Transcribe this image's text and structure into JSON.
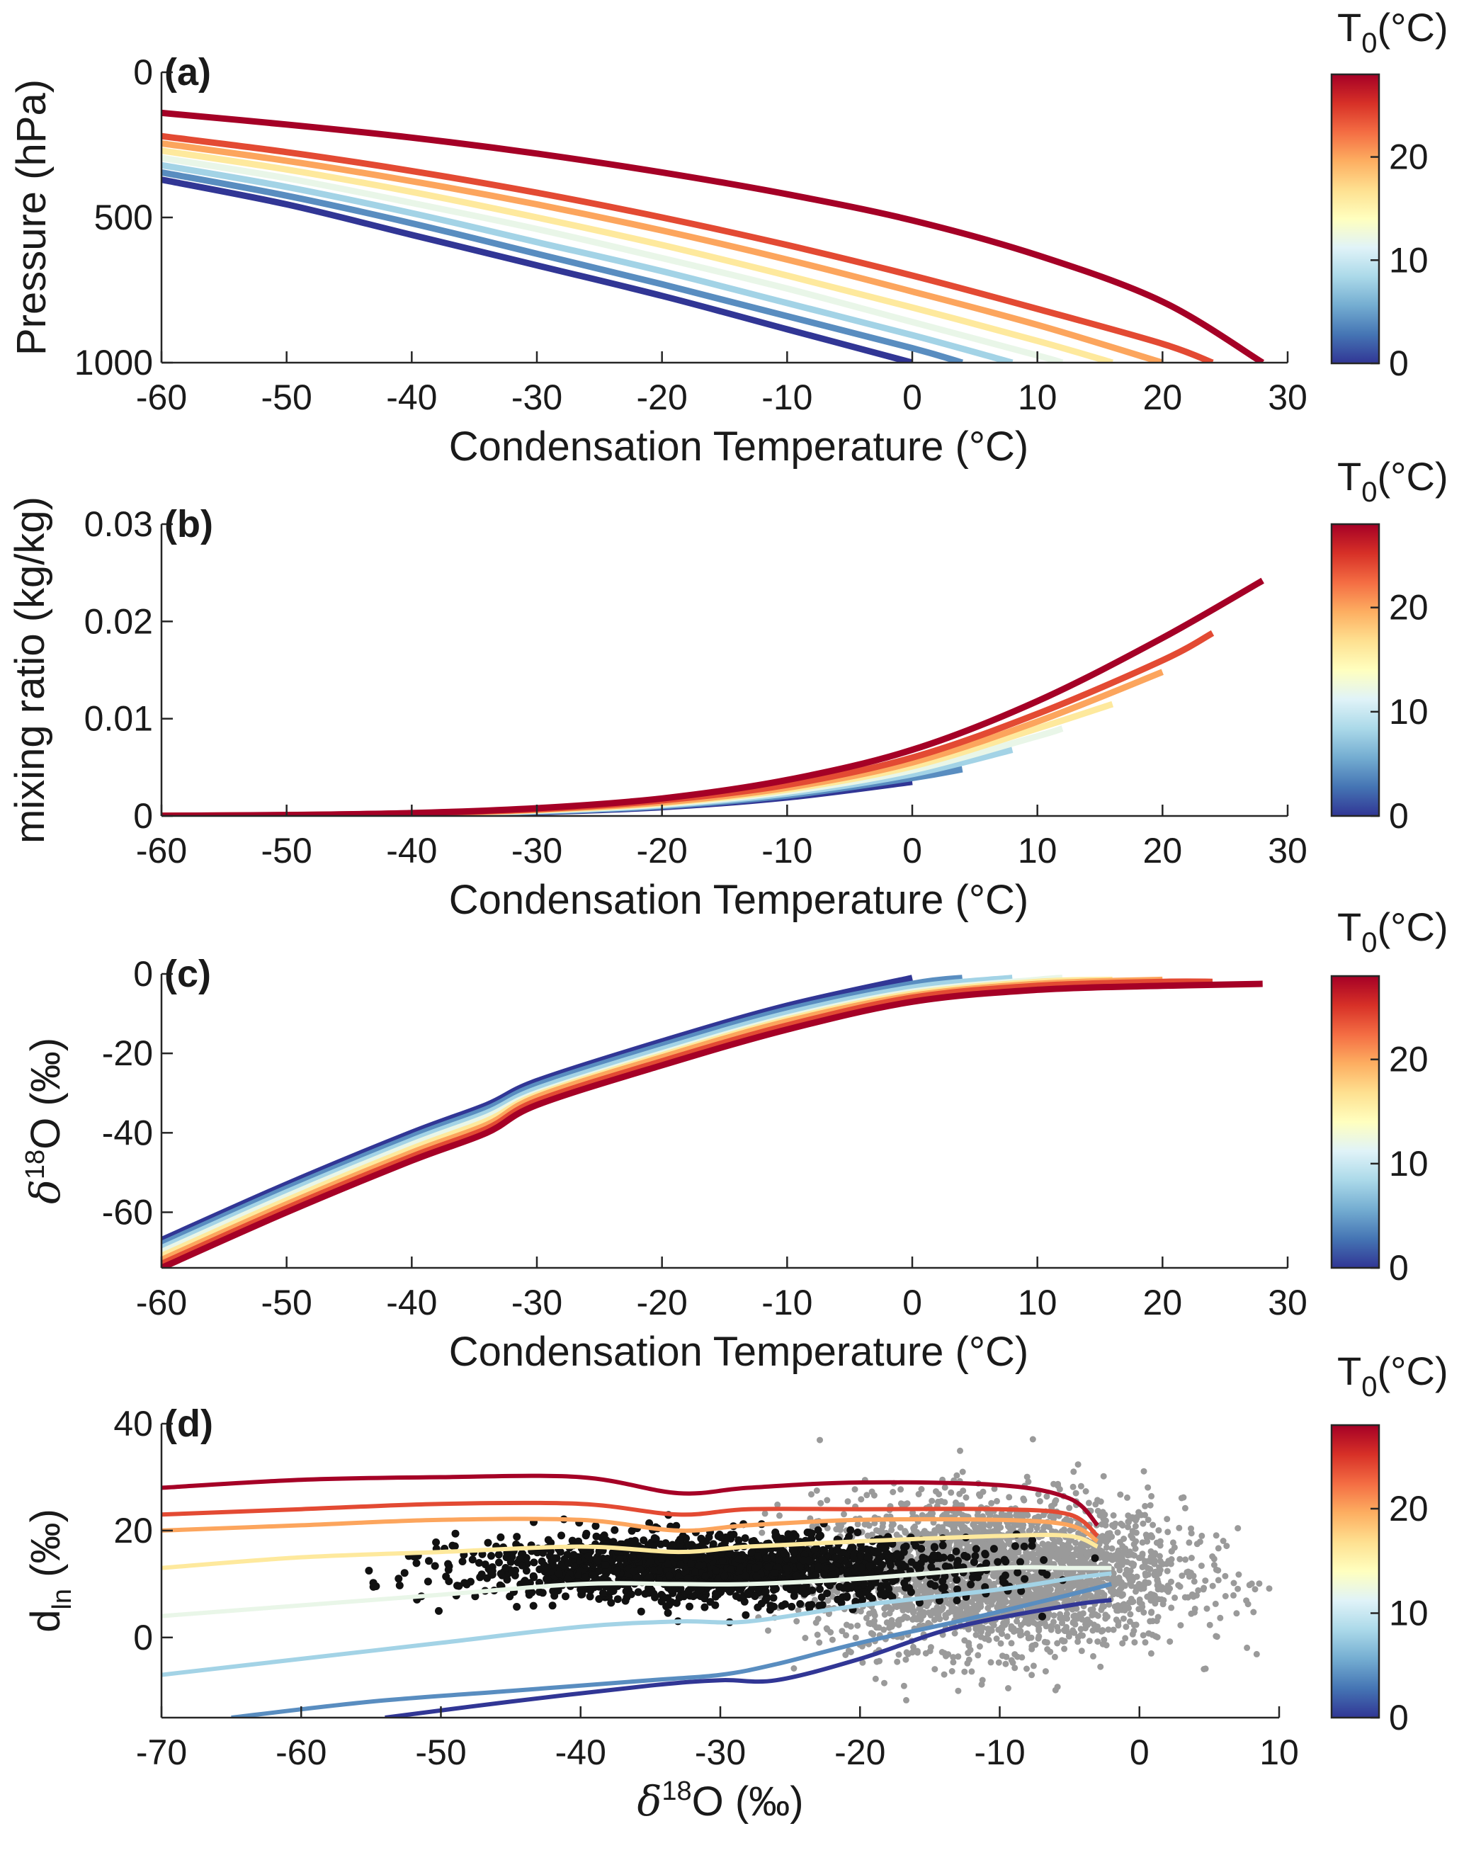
{
  "colormap": {
    "stops": [
      "#313695",
      "#4575b4",
      "#74add1",
      "#abd9e9",
      "#e0f3f8",
      "#ffffbf",
      "#fee090",
      "#fdae61",
      "#f46d43",
      "#d73027",
      "#a50026"
    ],
    "scatter_black": "#111111",
    "scatter_gray": "#9a9a9a"
  },
  "colorbar": {
    "label_main": "T",
    "label_sub": "0",
    "label_unit": "(°C)",
    "range": [
      0,
      28
    ],
    "ticks": [
      0,
      10,
      20
    ],
    "tick_labels": [
      "0",
      "10",
      "20"
    ]
  },
  "chart_data": [
    {
      "panel_label": "(a)",
      "type": "line",
      "xlabel": "Condensation Temperature (°C)",
      "ylabel": "Pressure (hPa)",
      "xlim": [
        -60,
        30
      ],
      "ylim": [
        1000,
        0
      ],
      "y_reversed": true,
      "xticks": [
        -60,
        -50,
        -40,
        -30,
        -20,
        -10,
        0,
        10,
        20,
        30
      ],
      "xtick_labels": [
        "-60",
        "-50",
        "-40",
        "-30",
        "-20",
        "-10",
        "0",
        "10",
        "20",
        "30"
      ],
      "yticks": [
        0,
        500,
        1000
      ],
      "ytick_labels": [
        "0",
        "500",
        "1000"
      ],
      "series": [
        {
          "T0": 0,
          "x": [
            -60,
            -50,
            -40,
            -30,
            -20,
            -10,
            0
          ],
          "y": [
            370,
            455,
            560,
            665,
            770,
            885,
            1000
          ]
        },
        {
          "T0": 4,
          "x": [
            -60,
            -50,
            -40,
            -30,
            -20,
            -10,
            0,
            4
          ],
          "y": [
            345,
            425,
            520,
            625,
            730,
            840,
            950,
            1000
          ]
        },
        {
          "T0": 8,
          "x": [
            -60,
            -50,
            -40,
            -30,
            -20,
            -10,
            0,
            8
          ],
          "y": [
            320,
            395,
            485,
            585,
            685,
            795,
            905,
            1000
          ]
        },
        {
          "T0": 12,
          "x": [
            -60,
            -50,
            -40,
            -30,
            -20,
            -10,
            0,
            10,
            12
          ],
          "y": [
            295,
            365,
            450,
            540,
            640,
            745,
            860,
            975,
            1000
          ]
        },
        {
          "T0": 16,
          "x": [
            -60,
            -50,
            -40,
            -30,
            -20,
            -10,
            0,
            10,
            16
          ],
          "y": [
            270,
            335,
            412,
            500,
            595,
            700,
            810,
            925,
            1000
          ]
        },
        {
          "T0": 20,
          "x": [
            -60,
            -50,
            -40,
            -30,
            -20,
            -10,
            0,
            10,
            20
          ],
          "y": [
            245,
            305,
            375,
            455,
            545,
            645,
            755,
            870,
            1000
          ]
        },
        {
          "T0": 24,
          "x": [
            -60,
            -50,
            -40,
            -30,
            -20,
            -10,
            0,
            10,
            20,
            24
          ],
          "y": [
            220,
            275,
            340,
            415,
            500,
            595,
            700,
            815,
            935,
            1000
          ]
        },
        {
          "T0": 28,
          "x": [
            -60,
            -50,
            -40,
            -30,
            -20,
            -10,
            0,
            10,
            20,
            28
          ],
          "y": [
            140,
            180,
            225,
            280,
            345,
            420,
            510,
            630,
            790,
            1000
          ]
        }
      ]
    },
    {
      "panel_label": "(b)",
      "type": "line",
      "xlabel": "Condensation Temperature (°C)",
      "ylabel": "mixing ratio (kg/kg)",
      "xlim": [
        -60,
        30
      ],
      "ylim": [
        0,
        0.03
      ],
      "xticks": [
        -60,
        -50,
        -40,
        -30,
        -20,
        -10,
        0,
        10,
        20,
        30
      ],
      "xtick_labels": [
        "-60",
        "-50",
        "-40",
        "-30",
        "-20",
        "-10",
        "0",
        "10",
        "20",
        "30"
      ],
      "yticks": [
        0,
        0.01,
        0.02,
        0.03
      ],
      "ytick_labels": [
        "0",
        "0.01",
        "0.02",
        "0.03"
      ],
      "series": [
        {
          "T0": 0,
          "x": [
            -60,
            -50,
            -40,
            -30,
            -20,
            -10,
            0
          ],
          "y": [
            1e-05,
            5e-05,
            0.00015,
            0.0004,
            0.0009,
            0.0019,
            0.0035
          ]
        },
        {
          "T0": 4,
          "x": [
            -60,
            -50,
            -40,
            -30,
            -20,
            -10,
            0,
            4
          ],
          "y": [
            1e-05,
            6e-05,
            0.00017,
            0.00045,
            0.001,
            0.0021,
            0.0039,
            0.0048
          ]
        },
        {
          "T0": 8,
          "x": [
            -60,
            -50,
            -40,
            -30,
            -20,
            -10,
            0,
            8
          ],
          "y": [
            1e-05,
            6e-05,
            0.00019,
            0.0005,
            0.0011,
            0.0023,
            0.0043,
            0.0068
          ]
        },
        {
          "T0": 12,
          "x": [
            -60,
            -50,
            -40,
            -30,
            -20,
            -10,
            0,
            10,
            12
          ],
          "y": [
            1e-05,
            7e-05,
            0.00021,
            0.00055,
            0.0012,
            0.0025,
            0.0047,
            0.0082,
            0.009
          ]
        },
        {
          "T0": 16,
          "x": [
            -60,
            -50,
            -40,
            -30,
            -20,
            -10,
            0,
            10,
            16
          ],
          "y": [
            1e-05,
            7e-05,
            0.00023,
            0.0006,
            0.0013,
            0.0027,
            0.0051,
            0.009,
            0.0115
          ]
        },
        {
          "T0": 20,
          "x": [
            -60,
            -50,
            -40,
            -30,
            -20,
            -10,
            0,
            10,
            20
          ],
          "y": [
            2e-05,
            8e-05,
            0.00025,
            0.00065,
            0.0014,
            0.0029,
            0.0055,
            0.0097,
            0.0148
          ]
        },
        {
          "T0": 24,
          "x": [
            -60,
            -50,
            -40,
            -30,
            -20,
            -10,
            0,
            10,
            20,
            24
          ],
          "y": [
            2e-05,
            9e-05,
            0.00028,
            0.0007,
            0.0016,
            0.0032,
            0.006,
            0.0105,
            0.016,
            0.0188
          ]
        },
        {
          "T0": 28,
          "x": [
            -60,
            -50,
            -40,
            -30,
            -20,
            -10,
            0,
            10,
            20,
            28
          ],
          "y": [
            2e-05,
            0.0001,
            0.0003,
            0.0008,
            0.0018,
            0.0037,
            0.0068,
            0.0118,
            0.0183,
            0.0242
          ]
        }
      ]
    },
    {
      "panel_label": "(c)",
      "type": "line",
      "xlabel": "Condensation Temperature (°C)",
      "ylabel_main": "δ",
      "ylabel_sup": "18",
      "ylabel_rest": "O (‰)",
      "xlim": [
        -60,
        30
      ],
      "ylim": [
        -74,
        0
      ],
      "xticks": [
        -60,
        -50,
        -40,
        -30,
        -20,
        -10,
        0,
        10,
        20,
        30
      ],
      "xtick_labels": [
        "-60",
        "-50",
        "-40",
        "-30",
        "-20",
        "-10",
        "0",
        "10",
        "20",
        "30"
      ],
      "yticks": [
        -60,
        -40,
        -20,
        0
      ],
      "ytick_labels": [
        "-60",
        "-40",
        "-20",
        "0"
      ],
      "series": [
        {
          "T0": 0,
          "x": [
            -60,
            -50,
            -40,
            -34,
            -30,
            -20,
            -10,
            0
          ],
          "y": [
            -67,
            -53,
            -40,
            -33,
            -27,
            -17,
            -8,
            -1
          ]
        },
        {
          "T0": 4,
          "x": [
            -60,
            -50,
            -40,
            -34,
            -30,
            -20,
            -10,
            0,
            4
          ],
          "y": [
            -68,
            -54,
            -41,
            -34,
            -28,
            -18,
            -9,
            -2.5,
            -1
          ]
        },
        {
          "T0": 8,
          "x": [
            -60,
            -50,
            -40,
            -34,
            -30,
            -20,
            -10,
            0,
            8
          ],
          "y": [
            -69,
            -55,
            -42,
            -35,
            -29,
            -19,
            -10,
            -3.5,
            -1
          ]
        },
        {
          "T0": 12,
          "x": [
            -60,
            -50,
            -40,
            -34,
            -30,
            -20,
            -10,
            0,
            10,
            12
          ],
          "y": [
            -70,
            -56,
            -43,
            -36,
            -30,
            -20,
            -11,
            -4.5,
            -1.5,
            -1
          ]
        },
        {
          "T0": 16,
          "x": [
            -60,
            -50,
            -40,
            -34,
            -30,
            -20,
            -10,
            0,
            10,
            16
          ],
          "y": [
            -71,
            -57,
            -44,
            -37,
            -30.5,
            -20.5,
            -11.5,
            -5,
            -2,
            -1.5
          ]
        },
        {
          "T0": 20,
          "x": [
            -60,
            -50,
            -40,
            -34,
            -30,
            -20,
            -10,
            0,
            10,
            20
          ],
          "y": [
            -72,
            -58,
            -45,
            -38,
            -31,
            -21,
            -12,
            -5.5,
            -2.5,
            -1.5
          ]
        },
        {
          "T0": 24,
          "x": [
            -60,
            -50,
            -40,
            -34,
            -30,
            -20,
            -10,
            0,
            10,
            20,
            24
          ],
          "y": [
            -73,
            -59,
            -46,
            -39,
            -32,
            -22,
            -13,
            -6,
            -3,
            -2,
            -2
          ]
        },
        {
          "T0": 28,
          "x": [
            -60,
            -50,
            -40,
            -34,
            -30,
            -20,
            -10,
            0,
            10,
            20,
            28
          ],
          "y": [
            -74,
            -60,
            -47,
            -40,
            -33,
            -23,
            -14,
            -7,
            -4,
            -3,
            -2.5
          ]
        }
      ]
    },
    {
      "panel_label": "(d)",
      "type": "scatter",
      "xlabel_main": "δ",
      "xlabel_sup": "18",
      "xlabel_rest": "O (‰)",
      "ylabel_main": "d",
      "ylabel_sub": "ln",
      "ylabel_rest": " (‰)",
      "xlim": [
        -70,
        10
      ],
      "ylim": [
        -15,
        40
      ],
      "xticks": [
        -70,
        -60,
        -50,
        -40,
        -30,
        -20,
        -10,
        0,
        10
      ],
      "xtick_labels": [
        "-70",
        "-60",
        "-50",
        "-40",
        "-30",
        "-20",
        "-10",
        "0",
        "10"
      ],
      "yticks": [
        0,
        20,
        40
      ],
      "ytick_labels": [
        "0",
        "20",
        "40"
      ],
      "scatter_clouds": [
        {
          "name": "gray observations",
          "center": [
            -10,
            12
          ],
          "spread": [
            6.5,
            7
          ],
          "x_range": [
            -28,
            10
          ],
          "y_range": [
            -15,
            40
          ],
          "n": 2800
        },
        {
          "name": "black observations",
          "center": [
            -30,
            13
          ],
          "spread": [
            9,
            3
          ],
          "x_range": [
            -58,
            -2
          ],
          "y_range": [
            -8,
            34
          ],
          "n": 1700
        }
      ],
      "series": [
        {
          "T0": 0,
          "x": [
            -54,
            -45,
            -35,
            -30,
            -26,
            -20,
            -13,
            -5,
            -2
          ],
          "y": [
            -15,
            -12,
            -9,
            -8,
            -8,
            -4,
            2,
            6,
            7
          ]
        },
        {
          "T0": 4,
          "x": [
            -65,
            -55,
            -45,
            -35,
            -30,
            -26,
            -20,
            -13,
            -5,
            -2
          ],
          "y": [
            -15,
            -12,
            -10,
            -8,
            -7,
            -5,
            -1,
            3,
            8,
            10
          ]
        },
        {
          "T0": 8,
          "x": [
            -70,
            -60,
            -50,
            -40,
            -33,
            -28,
            -20,
            -10,
            -5,
            -2
          ],
          "y": [
            -7,
            -4,
            -1,
            2,
            3,
            3,
            6,
            9,
            11,
            12
          ]
        },
        {
          "T0": 12,
          "x": [
            -70,
            -60,
            -50,
            -40,
            -33,
            -28,
            -20,
            -10,
            -5,
            -2
          ],
          "y": [
            4,
            6,
            8,
            10,
            10,
            10,
            11,
            13,
            13,
            13
          ]
        },
        {
          "T0": 16,
          "x": [
            -70,
            -60,
            -50,
            -40,
            -33,
            -28,
            -20,
            -10,
            -5,
            -3
          ],
          "y": [
            13,
            15,
            16,
            17,
            16,
            17,
            18,
            19,
            19,
            17
          ]
        },
        {
          "T0": 20,
          "x": [
            -70,
            -60,
            -50,
            -40,
            -33,
            -28,
            -20,
            -10,
            -5,
            -3
          ],
          "y": [
            20,
            21,
            22,
            22,
            20,
            21,
            22,
            22,
            21,
            18
          ]
        },
        {
          "T0": 24,
          "x": [
            -70,
            -60,
            -50,
            -40,
            -33,
            -28,
            -20,
            -10,
            -5,
            -3
          ],
          "y": [
            23,
            24,
            25,
            25,
            23,
            24,
            24,
            24,
            23,
            19
          ]
        },
        {
          "T0": 28,
          "x": [
            -70,
            -60,
            -50,
            -40,
            -33,
            -28,
            -20,
            -10,
            -5,
            -3
          ],
          "y": [
            28,
            29.5,
            30,
            30,
            27,
            28,
            29,
            28.5,
            26,
            21
          ]
        }
      ]
    }
  ]
}
